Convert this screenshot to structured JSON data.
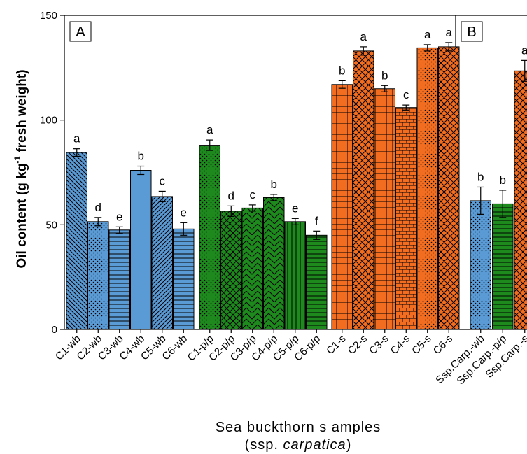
{
  "chart_data": [
    {
      "panel": "A",
      "type": "bar",
      "ylabel_main": "Oil content (g kg",
      "ylabel_sup": "-1",
      "ylabel_tail": " fresh weight)",
      "xlabel_line1": "Sea buckthorn s amples",
      "xlabel_line2_prefix": "(ssp. ",
      "xlabel_line2_italic": "carpatica",
      "xlabel_line2_suffix": ")",
      "ylim": [
        0,
        150
      ],
      "yticks": [
        0,
        50,
        100,
        150
      ],
      "bars": [
        {
          "label": "C1-wb",
          "value": 84.5,
          "error": 1.8,
          "letter": "a",
          "color": "#5b9bd5",
          "pattern": "diag-right"
        },
        {
          "label": "C2-wb",
          "value": 51.5,
          "error": 2.0,
          "letter": "d",
          "color": "#5b9bd5",
          "pattern": "dots"
        },
        {
          "label": "C3-wb",
          "value": 47.5,
          "error": 1.5,
          "letter": "e",
          "color": "#5b9bd5",
          "pattern": "hlines"
        },
        {
          "label": "C4-wb",
          "value": 76.0,
          "error": 2.0,
          "letter": "b",
          "color": "#5b9bd5",
          "pattern": "solid"
        },
        {
          "label": "C5-wb",
          "value": 63.5,
          "error": 2.5,
          "letter": "c",
          "color": "#5b9bd5",
          "pattern": "diag-left"
        },
        {
          "label": "C6-wb",
          "value": 48.0,
          "error": 3.0,
          "letter": "e",
          "color": "#5b9bd5",
          "pattern": "hlines"
        },
        {
          "label": "C1-p/p",
          "value": 88.0,
          "error": 2.5,
          "letter": "a",
          "color": "#1e8a1e",
          "pattern": "dots"
        },
        {
          "label": "C2-p/p",
          "value": 56.5,
          "error": 2.5,
          "letter": "d",
          "color": "#1e8a1e",
          "pattern": "crosshatch"
        },
        {
          "label": "C3-p/p",
          "value": 58.0,
          "error": 1.5,
          "letter": "c",
          "color": "#1e8a1e",
          "pattern": "chevron"
        },
        {
          "label": "C4-p/p",
          "value": 63.0,
          "error": 1.5,
          "letter": "b",
          "color": "#1e8a1e",
          "pattern": "chevron"
        },
        {
          "label": "C5-p/p",
          "value": 51.5,
          "error": 1.5,
          "letter": "e",
          "color": "#1e8a1e",
          "pattern": "vlines"
        },
        {
          "label": "C6-p/p",
          "value": 45.0,
          "error": 2.0,
          "letter": "f",
          "color": "#1e8a1e",
          "pattern": "hlines"
        },
        {
          "label": "C1-s",
          "value": 117.0,
          "error": 1.8,
          "letter": "b",
          "color": "#f36d21",
          "pattern": "grid"
        },
        {
          "label": "C2-s",
          "value": 133.0,
          "error": 2.0,
          "letter": "a",
          "color": "#f36d21",
          "pattern": "crosshatch"
        },
        {
          "label": "C3-s",
          "value": 115.0,
          "error": 1.5,
          "letter": "b",
          "color": "#f36d21",
          "pattern": "grid"
        },
        {
          "label": "C4-s",
          "value": 106.0,
          "error": 1.2,
          "letter": "c",
          "color": "#f36d21",
          "pattern": "brick"
        },
        {
          "label": "C5-s",
          "value": 134.5,
          "error": 1.5,
          "letter": "a",
          "color": "#f36d21",
          "pattern": "dots"
        },
        {
          "label": "C6-s",
          "value": 135.0,
          "error": 2.0,
          "letter": "a",
          "color": "#f36d21",
          "pattern": "crosshatch"
        }
      ],
      "grid": false,
      "legend": "none"
    },
    {
      "panel": "B",
      "type": "bar",
      "ylim": [
        0,
        150
      ],
      "bars": [
        {
          "label": "Ssp.Carp.-wb",
          "value": 61.5,
          "error": 6.5,
          "letter": "b",
          "color": "#5b9bd5",
          "pattern": "dots"
        },
        {
          "label": "Ssp.Carp.-p/p",
          "value": 60.0,
          "error": 6.5,
          "letter": "b",
          "color": "#1e8a1e",
          "pattern": "hlines"
        },
        {
          "label": "Ssp.Carp.-s",
          "value": 123.5,
          "error": 5.0,
          "letter": "a",
          "color": "#f36d21",
          "pattern": "crosshatch"
        }
      ],
      "grid": false,
      "legend": "none"
    }
  ],
  "colors": {
    "wb": "#5b9bd5",
    "pp": "#1e8a1e",
    "s": "#f36d21"
  }
}
